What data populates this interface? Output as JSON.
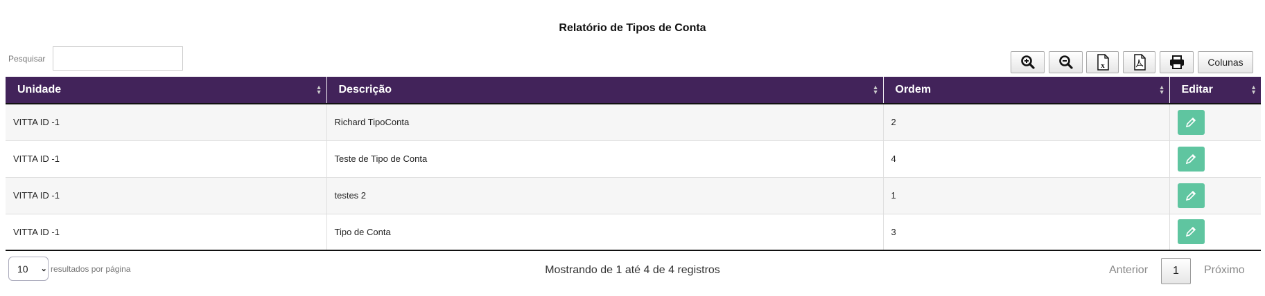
{
  "title": "Relatório de Tipos de Conta",
  "search": {
    "label": "Pesquisar",
    "value": "",
    "placeholder": ""
  },
  "toolbar": {
    "zoom_in": "zoom-in-icon",
    "zoom_out": "zoom-out-icon",
    "excel": "excel-file-icon",
    "pdf": "pdf-file-icon",
    "print": "print-icon",
    "columns_label": "Colunas"
  },
  "colors": {
    "header": "#42235a",
    "edit": "#5fc5a0"
  },
  "table": {
    "columns": [
      "Unidade",
      "Descrição",
      "Ordem",
      "Editar"
    ],
    "rows": [
      {
        "unidade": "VITTA ID -1",
        "descricao": "Richard TipoConta",
        "ordem": "2"
      },
      {
        "unidade": "VITTA ID -1",
        "descricao": "Teste de Tipo de Conta",
        "ordem": "4"
      },
      {
        "unidade": "VITTA ID -1",
        "descricao": "testes 2",
        "ordem": "1"
      },
      {
        "unidade": "VITTA ID -1",
        "descricao": "Tipo de Conta",
        "ordem": "3"
      }
    ]
  },
  "footer": {
    "page_size": "10",
    "page_size_label": "resultados por página",
    "info": "Mostrando de 1 até 4 de 4 registros",
    "prev": "Anterior",
    "current_page": "1",
    "next": "Próximo"
  }
}
